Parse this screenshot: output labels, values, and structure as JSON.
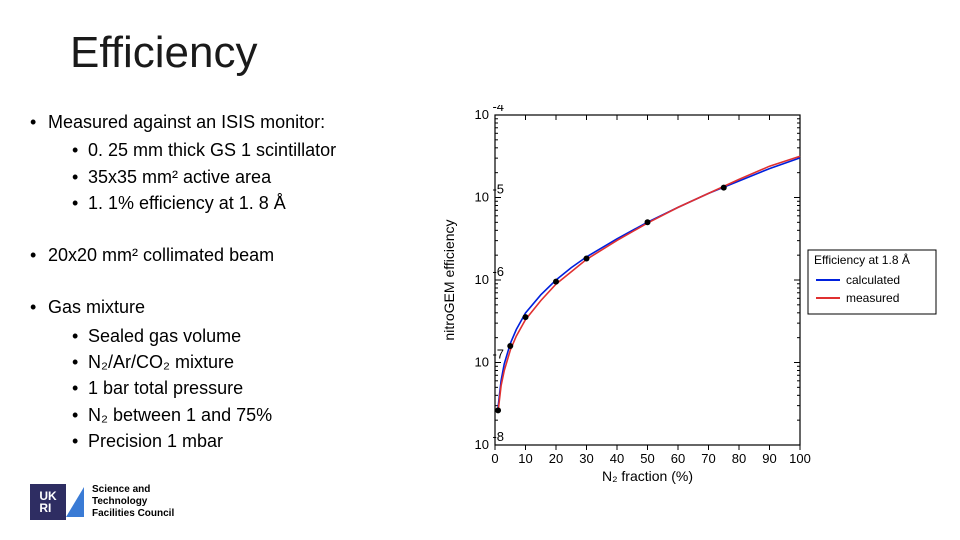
{
  "title": "Efficiency",
  "bullets": [
    {
      "text": "Measured against an ISIS monitor:",
      "sub": [
        "0. 25 mm thick GS 1 scintillator",
        "35x35 mm² active area",
        "1. 1% efficiency at 1. 8 Å"
      ]
    },
    {
      "text": "20x20 mm² collimated beam",
      "sub": []
    },
    {
      "text": "Gas mixture",
      "sub": [
        "Sealed gas volume",
        "N₂/Ar/CO₂ mixture",
        "1 bar total pressure",
        "N₂ between 1 and 75%",
        "Precision 1 mbar"
      ]
    }
  ],
  "logo": {
    "initials_top": "UK",
    "initials_bot": "RI",
    "text_l1": "Science and",
    "text_l2": "Technology",
    "text_l3": "Facilities Council"
  },
  "chart": {
    "type": "line",
    "xlabel": "N₂ fraction (%)",
    "ylabel": "nitroGEM efficiency",
    "xlim": [
      0,
      100
    ],
    "xticks": [
      0,
      10,
      20,
      30,
      40,
      50,
      60,
      70,
      80,
      90,
      100
    ],
    "ylim_exp": [
      -8,
      -4
    ],
    "ytick_exp": [
      -8,
      -7,
      -6,
      -5,
      -4
    ],
    "legend_title": "Efficiency at 1.8 Å",
    "legend_items": [
      {
        "label": "calculated",
        "color": "#0020dd"
      },
      {
        "label": "measured",
        "color": "#e03030"
      }
    ],
    "background_color": "#ffffff",
    "series_calc_color": "#0020dd",
    "series_meas_color": "#e03030",
    "curve_x": [
      1,
      2,
      3,
      5,
      7,
      10,
      15,
      20,
      25,
      30,
      40,
      50,
      60,
      70,
      80,
      90,
      100
    ],
    "curve_calc_logy": [
      -7.55,
      -7.22,
      -7.02,
      -6.77,
      -6.6,
      -6.4,
      -6.18,
      -6.0,
      -5.85,
      -5.72,
      -5.5,
      -5.3,
      -5.12,
      -4.95,
      -4.8,
      -4.65,
      -4.52
    ],
    "curve_meas_logy": [
      -7.6,
      -7.28,
      -7.1,
      -6.85,
      -6.68,
      -6.48,
      -6.25,
      -6.05,
      -5.9,
      -5.75,
      -5.52,
      -5.31,
      -5.12,
      -4.95,
      -4.78,
      -4.62,
      -4.5
    ],
    "points_x": [
      1,
      5,
      10,
      20,
      30,
      50,
      75
    ],
    "points_logy": [
      -7.58,
      -6.8,
      -6.45,
      -6.02,
      -5.74,
      -5.3,
      -4.88
    ]
  }
}
